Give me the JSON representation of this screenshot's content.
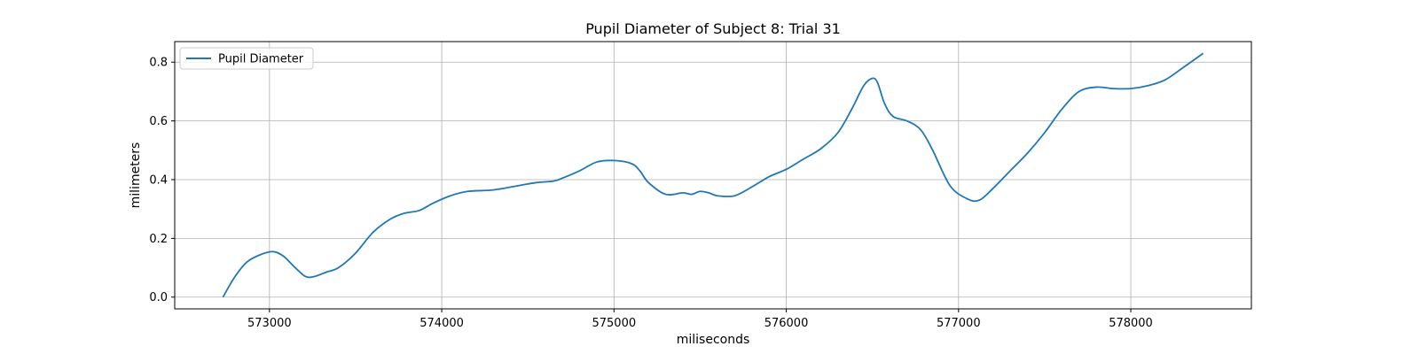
{
  "chart_data": {
    "type": "line",
    "title": "Pupil Diameter of Subject 8: Trial 31",
    "xlabel": "miliseconds",
    "ylabel": "milimeters",
    "xlim": [
      572450,
      578700
    ],
    "ylim": [
      -0.04,
      0.87
    ],
    "xticks": [
      573000,
      574000,
      575000,
      576000,
      577000,
      578000
    ],
    "xtick_labels": [
      "573000",
      "574000",
      "575000",
      "576000",
      "577000",
      "578000"
    ],
    "yticks": [
      0.0,
      0.2,
      0.4,
      0.6,
      0.8
    ],
    "ytick_labels": [
      "0.0",
      "0.2",
      "0.4",
      "0.6",
      "0.8"
    ],
    "grid": true,
    "legend_position": "top-left",
    "series": [
      {
        "name": "Pupil Diameter",
        "color": "#1f77b4",
        "x": [
          572730,
          572800,
          572870,
          572950,
          573020,
          573080,
          573150,
          573210,
          573260,
          573330,
          573400,
          573500,
          573600,
          573700,
          573780,
          573870,
          573950,
          574050,
          574150,
          574300,
          574450,
          574550,
          574650,
          574700,
          574800,
          574900,
          575000,
          575100,
          575150,
          575200,
          575300,
          575400,
          575450,
          575500,
          575550,
          575600,
          575700,
          575800,
          575900,
          576000,
          576100,
          576200,
          576300,
          576380,
          576450,
          576500,
          576530,
          576570,
          576620,
          576700,
          576780,
          576850,
          576950,
          577050,
          577120,
          577200,
          577300,
          577400,
          577500,
          577600,
          577700,
          577800,
          577900,
          578000,
          578100,
          578200,
          578300,
          578420
        ],
        "y": [
          0.0,
          0.07,
          0.12,
          0.145,
          0.155,
          0.14,
          0.1,
          0.07,
          0.07,
          0.085,
          0.1,
          0.15,
          0.22,
          0.265,
          0.285,
          0.295,
          0.32,
          0.345,
          0.36,
          0.365,
          0.38,
          0.39,
          0.395,
          0.405,
          0.43,
          0.46,
          0.465,
          0.455,
          0.43,
          0.39,
          0.35,
          0.355,
          0.35,
          0.36,
          0.355,
          0.345,
          0.345,
          0.375,
          0.41,
          0.435,
          0.47,
          0.505,
          0.56,
          0.64,
          0.72,
          0.745,
          0.73,
          0.66,
          0.615,
          0.6,
          0.57,
          0.5,
          0.38,
          0.335,
          0.33,
          0.37,
          0.43,
          0.49,
          0.56,
          0.64,
          0.7,
          0.715,
          0.71,
          0.71,
          0.72,
          0.74,
          0.78,
          0.83
        ]
      }
    ]
  }
}
